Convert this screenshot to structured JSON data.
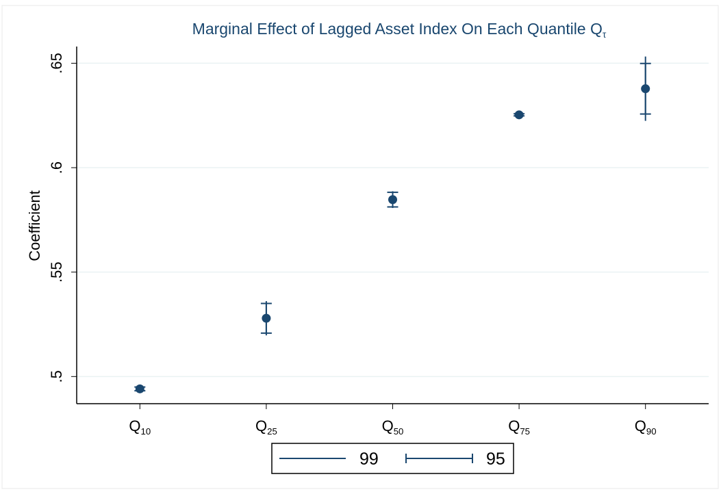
{
  "chart_data": {
    "type": "errorbar",
    "title": "Marginal Effect of Lagged Asset Index On Each Quantile Qτ",
    "y_label": "Coefficient",
    "categories": [
      "Q10",
      "Q25",
      "Q50",
      "Q75",
      "Q90"
    ],
    "values": [
      0.4941,
      0.5279,
      0.5847,
      0.6253,
      0.6378
    ],
    "color": "#1a476f",
    "error_bars": [
      {
        "name": "99",
        "style": "line",
        "errors": [
          0.0012,
          0.0082,
          0.004,
          0.0006,
          0.0154
        ]
      },
      {
        "name": "95",
        "style": "capped",
        "errors": [
          0.0009,
          0.0071,
          0.0035,
          0.0005,
          0.0121
        ]
      }
    ],
    "ylim": [
      0.487,
      0.658
    ],
    "yticks": [
      {
        "value": 0.5,
        "label": ".5"
      },
      {
        "value": 0.55,
        "label": ".55"
      },
      {
        "value": 0.6,
        "label": ".6"
      },
      {
        "value": 0.65,
        "label": ".65"
      }
    ],
    "grid": true
  }
}
